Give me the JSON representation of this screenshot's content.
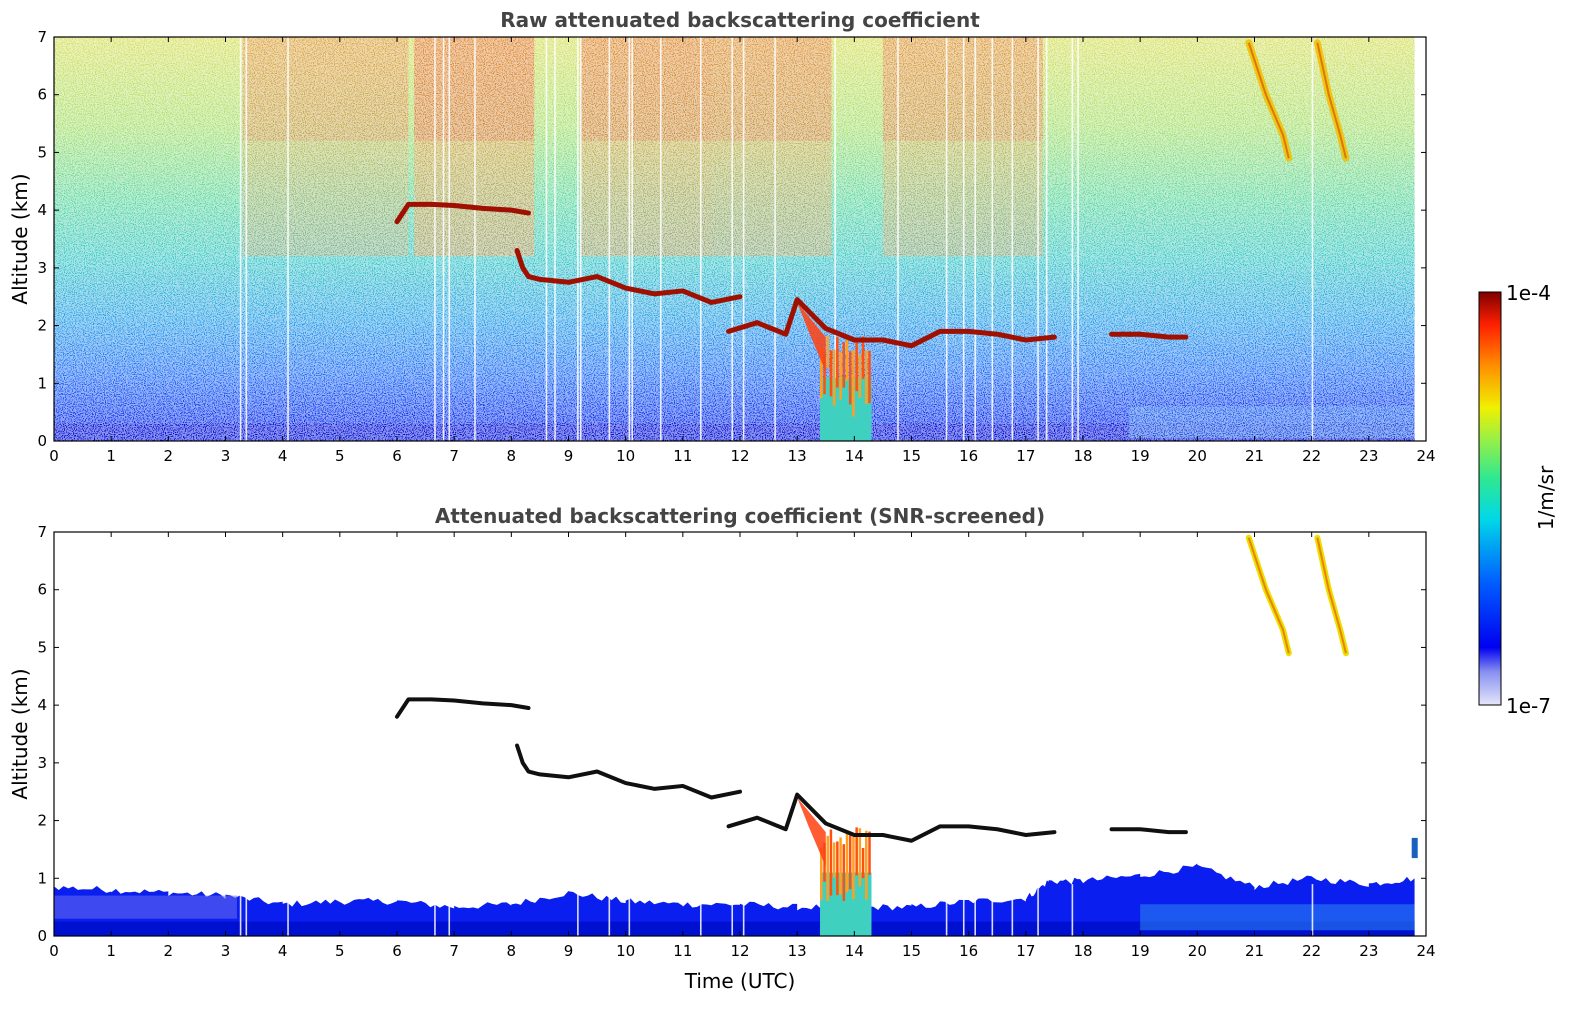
{
  "chart_data": [
    {
      "type": "heatmap",
      "title": "Raw attenuated backscattering coefficient",
      "xlabel": "",
      "ylabel": "Altitude (km)",
      "xlim": [
        0,
        24
      ],
      "ylim": [
        0,
        7
      ],
      "x_ticks": [
        "0",
        "1",
        "2",
        "3",
        "4",
        "5",
        "6",
        "7",
        "8",
        "9",
        "10",
        "11",
        "12",
        "13",
        "14",
        "15",
        "16",
        "17",
        "18",
        "19",
        "20",
        "21",
        "22",
        "23",
        "24"
      ],
      "y_ticks": [
        "0",
        "1",
        "2",
        "3",
        "4",
        "5",
        "6",
        "7"
      ],
      "features": {
        "cloud_layers": [
          {
            "x": [
              6.0,
              6.2,
              6.6,
              7.0,
              7.5,
              8.0,
              8.3
            ],
            "y": [
              3.8,
              4.1,
              4.1,
              4.08,
              4.03,
              4.0,
              3.95
            ]
          },
          {
            "x": [
              8.1,
              8.2,
              8.3,
              8.5,
              9.0,
              9.5,
              10.0,
              10.5,
              11.0,
              11.5,
              12.0
            ],
            "y": [
              3.3,
              3.0,
              2.85,
              2.8,
              2.75,
              2.85,
              2.65,
              2.55,
              2.6,
              2.4,
              2.5
            ]
          },
          {
            "x": [
              11.8,
              12.3,
              12.8,
              13.0,
              13.5,
              14.0,
              14.5,
              15.0,
              15.5,
              16.0,
              16.5,
              17.0,
              17.5
            ],
            "y": [
              1.9,
              2.05,
              1.85,
              2.45,
              1.95,
              1.75,
              1.75,
              1.65,
              1.9,
              1.9,
              1.85,
              1.75,
              1.8
            ]
          },
          {
            "x": [
              18.5,
              19.0,
              19.5,
              19.8
            ],
            "y": [
              1.85,
              1.85,
              1.8,
              1.8
            ]
          },
          {
            "x": [
              20.9,
              21.2,
              21.5,
              21.6
            ],
            "y": [
              6.9,
              6.0,
              5.3,
              4.9
            ]
          },
          {
            "x": [
              22.1,
              22.3,
              22.5,
              22.6
            ],
            "y": [
              6.9,
              6.0,
              5.3,
              4.9
            ]
          }
        ],
        "precipitation": {
          "x": [
            13.4,
            14.3
          ],
          "y": [
            0,
            2.0
          ]
        }
      }
    },
    {
      "type": "heatmap",
      "title": "Attenuated backscattering coefficient (SNR-screened)",
      "xlabel": "Time (UTC)",
      "ylabel": "Altitude (km)",
      "xlim": [
        0,
        24
      ],
      "ylim": [
        0,
        7
      ],
      "x_ticks": [
        "0",
        "1",
        "2",
        "3",
        "4",
        "5",
        "6",
        "7",
        "8",
        "9",
        "10",
        "11",
        "12",
        "13",
        "14",
        "15",
        "16",
        "17",
        "18",
        "19",
        "20",
        "21",
        "22",
        "23",
        "24"
      ],
      "y_ticks": [
        "0",
        "1",
        "2",
        "3",
        "4",
        "5",
        "6",
        "7"
      ],
      "features": {
        "boundary_layer_top": {
          "x": [
            0,
            1,
            2,
            3,
            4,
            5,
            6,
            7,
            8,
            9,
            10,
            11,
            12,
            13,
            14,
            15,
            16,
            17,
            17.4,
            18,
            19,
            20,
            21,
            22,
            23,
            23.8
          ],
          "y": [
            0.85,
            0.8,
            0.75,
            0.7,
            0.55,
            0.6,
            0.6,
            0.5,
            0.55,
            0.75,
            0.6,
            0.55,
            0.55,
            0.5,
            0.5,
            0.5,
            0.6,
            0.65,
            0.95,
            0.95,
            1.05,
            1.2,
            0.85,
            1.0,
            0.9,
            1.0
          ]
        }
      }
    }
  ],
  "colorbar": {
    "max_label": "1e-4",
    "min_label": "1e-7",
    "label": "1/m/sr"
  }
}
